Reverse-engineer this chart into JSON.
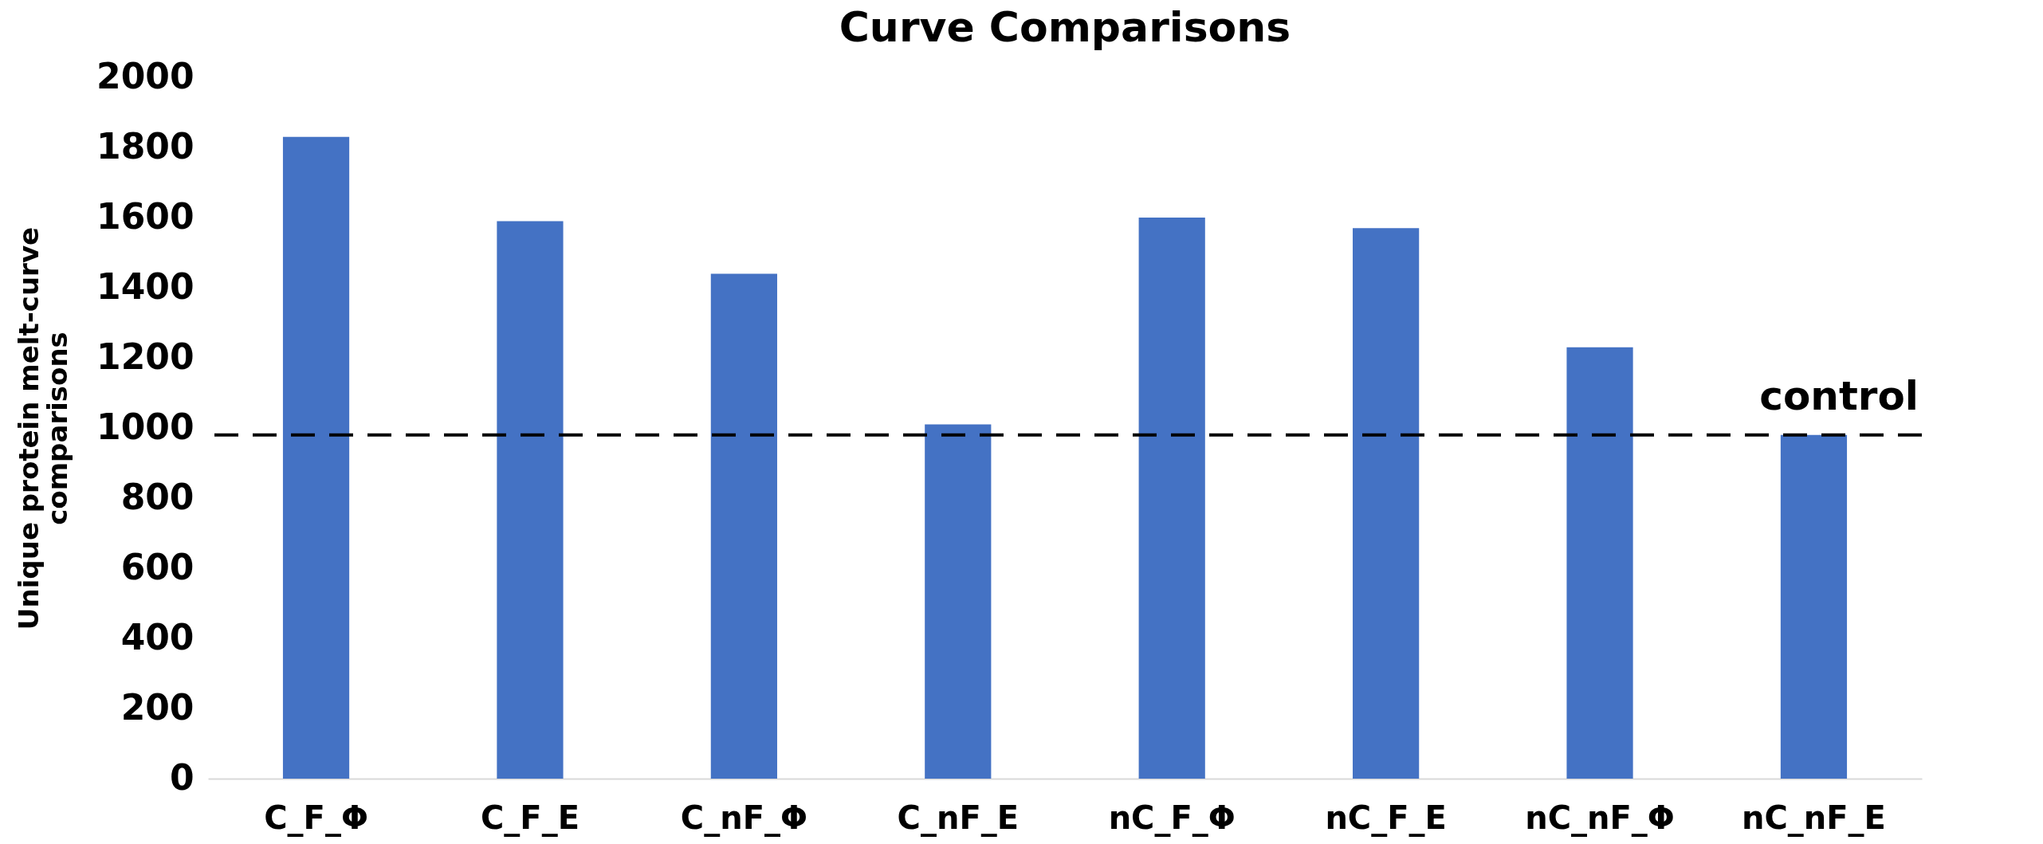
{
  "chart_data": {
    "type": "bar",
    "title": "Curve Comparisons",
    "ylabel": "Unique protein melt-curve comparisons",
    "categories": [
      "C_F_Φ",
      "C_F_E",
      "C_nF_Φ",
      "C_nF_E",
      "nC_F_Φ",
      "nC_F_E",
      "nC_nF_Φ",
      "nC_nF_E"
    ],
    "values": [
      1830,
      1590,
      1440,
      1010,
      1600,
      1570,
      1230,
      980
    ],
    "color": "#4472c4",
    "ylim": [
      0,
      2000
    ],
    "yticks": [
      0,
      200,
      400,
      600,
      800,
      1000,
      1200,
      1400,
      1600,
      1800,
      2000
    ],
    "grid": false,
    "ref_lines": [
      {
        "axis": "y",
        "value": 980,
        "label": "control",
        "color": "#000000",
        "line_style": "dashed"
      }
    ]
  }
}
